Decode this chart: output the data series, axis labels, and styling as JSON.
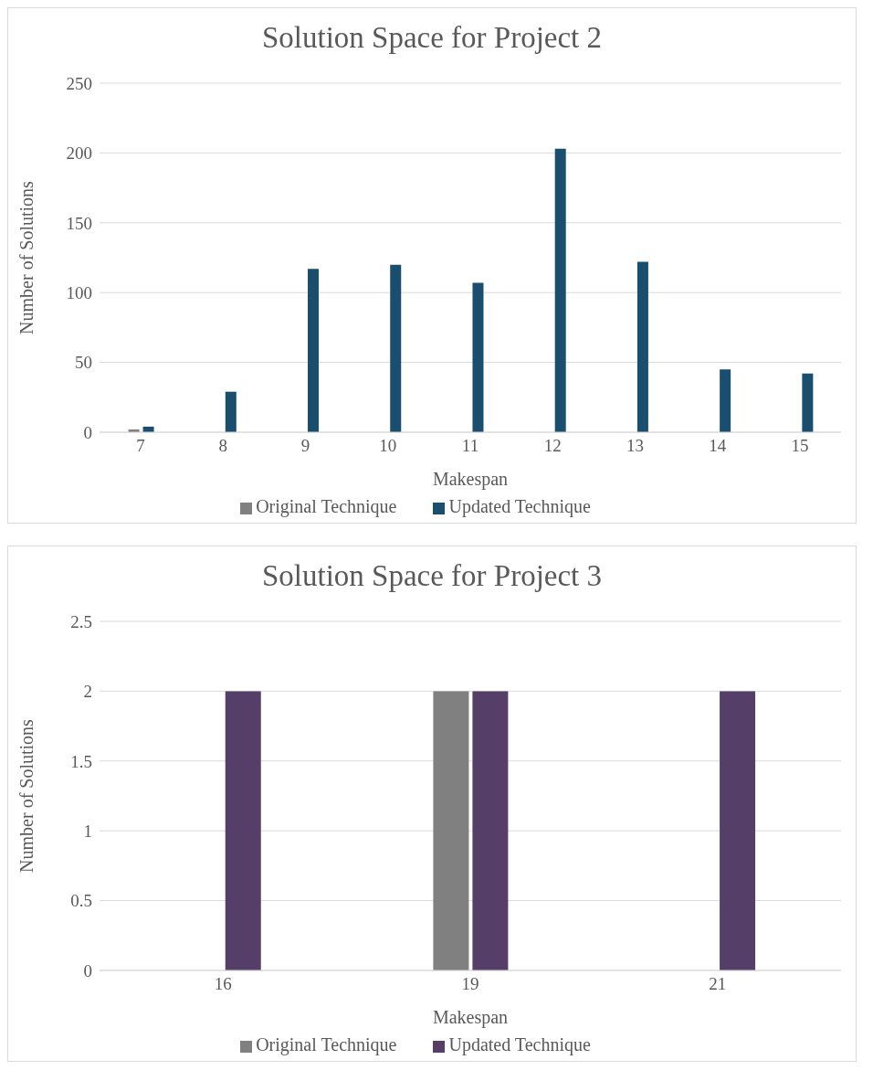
{
  "chart_data": [
    {
      "type": "bar",
      "title": "Solution Space for Project 2",
      "xlabel": "Makespan",
      "ylabel": "Number of Solutions",
      "categories": [
        "7",
        "8",
        "9",
        "10",
        "11",
        "12",
        "13",
        "14",
        "15"
      ],
      "series": [
        {
          "name": "Original Technique",
          "color": "#808080",
          "values": [
            2,
            null,
            null,
            null,
            null,
            null,
            null,
            null,
            null
          ]
        },
        {
          "name": "Updated Technique",
          "color": "#194e6e",
          "values": [
            4,
            29,
            117,
            120,
            107,
            203,
            122,
            45,
            42
          ]
        }
      ],
      "ylim": [
        0,
        250
      ],
      "yticks": [
        0,
        50,
        100,
        150,
        200,
        250
      ],
      "grid": "y",
      "legend": "bottom"
    },
    {
      "type": "bar",
      "title": "Solution Space for Project 3",
      "xlabel": "Makespan",
      "ylabel": "Number of Solutions",
      "categories": [
        "16",
        "19",
        "21"
      ],
      "series": [
        {
          "name": "Original Technique",
          "color": "#808080",
          "values": [
            null,
            2,
            null
          ]
        },
        {
          "name": "Updated Technique",
          "color": "#553f69",
          "values": [
            2,
            2,
            2
          ]
        }
      ],
      "ylim": [
        0,
        2.5
      ],
      "yticks": [
        0,
        0.5,
        1,
        1.5,
        2,
        2.5
      ],
      "grid": "y",
      "legend": "bottom"
    }
  ]
}
